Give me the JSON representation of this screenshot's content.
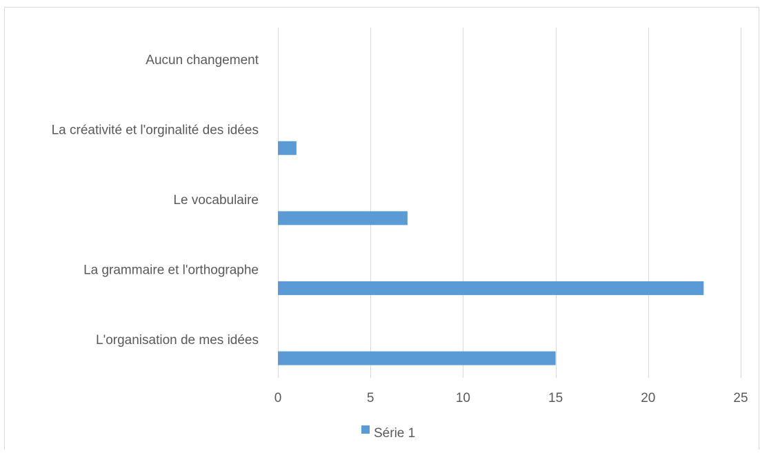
{
  "chart_data": {
    "type": "bar",
    "orientation": "horizontal",
    "categories": [
      "L'organisation de mes idées",
      "La grammaire et l'orthographe",
      "Le vocabulaire",
      "La créativité et l'orginalité des idées",
      "Aucun changement"
    ],
    "series": [
      {
        "name": "Série 1",
        "values": [
          15,
          23,
          7,
          1,
          0
        ]
      }
    ],
    "xlim": [
      0,
      25
    ],
    "x_ticks": [
      0,
      5,
      10,
      15,
      20,
      25
    ],
    "title": "",
    "xlabel": "",
    "ylabel": "",
    "grid": "vertical",
    "legend": "bottom",
    "colors": {
      "bar": "#5b9bd5",
      "grid": "#d9d9d9",
      "text": "#595959",
      "frame": "#d9d9d9"
    }
  }
}
